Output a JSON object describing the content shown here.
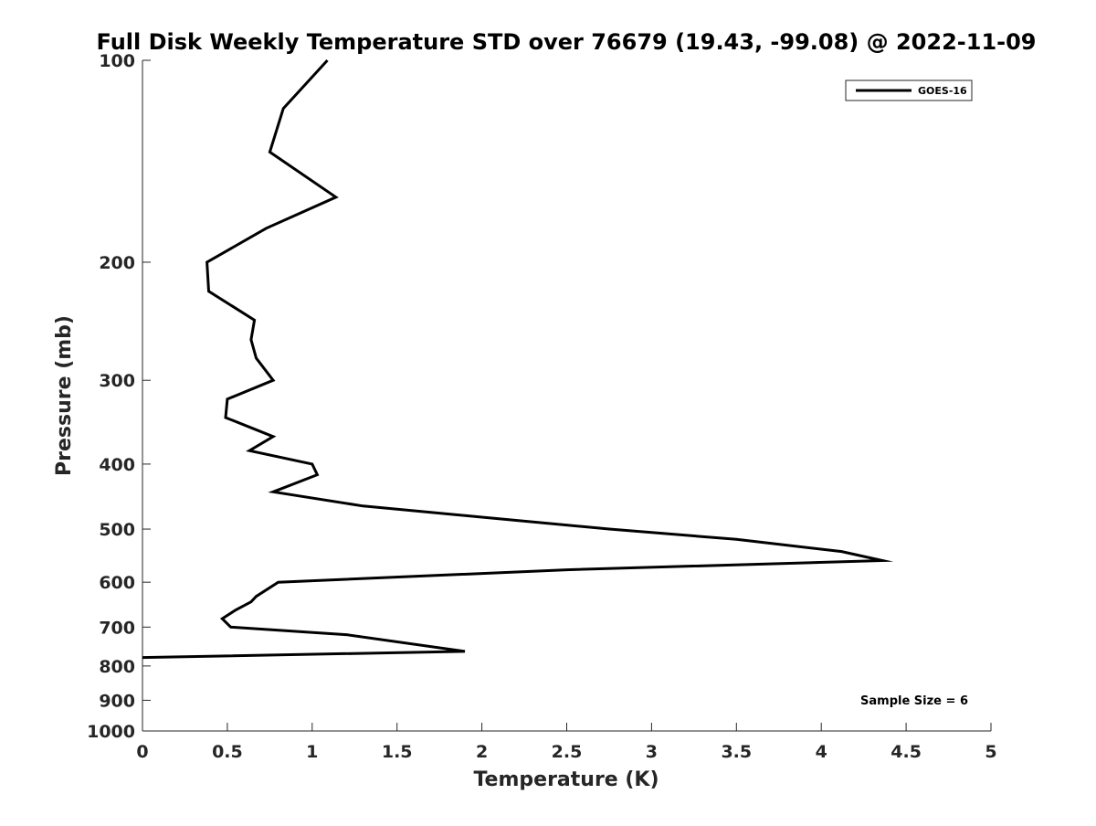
{
  "chart_data": {
    "type": "line",
    "title": "Full Disk Weekly Temperature STD over 76679 (19.43, -99.08) @ 2022-11-09",
    "xlabel": "Temperature (K)",
    "ylabel": "Pressure (mb)",
    "xlim": [
      0,
      5
    ],
    "ylim": [
      100,
      1000
    ],
    "y_scale": "log",
    "y_reversed": true,
    "x_ticks": [
      0,
      0.5,
      1,
      1.5,
      2,
      2.5,
      3,
      3.5,
      4,
      4.5,
      5
    ],
    "x_tick_labels": [
      "0",
      "0.5",
      "1",
      "1.5",
      "2",
      "2.5",
      "3",
      "3.5",
      "4",
      "4.5",
      "5"
    ],
    "y_ticks": [
      100,
      200,
      300,
      400,
      500,
      600,
      700,
      800,
      900,
      1000
    ],
    "y_tick_labels": [
      "100",
      "200",
      "300",
      "400",
      "500",
      "600",
      "700",
      "800",
      "900",
      "1000"
    ],
    "grid": false,
    "legend_position": "top-right",
    "series": [
      {
        "name": "GOES-16",
        "color": "#000000",
        "points": [
          {
            "x": 1.09,
            "y": 100
          },
          {
            "x": 0.83,
            "y": 118
          },
          {
            "x": 0.75,
            "y": 137
          },
          {
            "x": 1.14,
            "y": 160
          },
          {
            "x": 0.73,
            "y": 178
          },
          {
            "x": 0.38,
            "y": 200
          },
          {
            "x": 0.39,
            "y": 221
          },
          {
            "x": 0.66,
            "y": 244
          },
          {
            "x": 0.64,
            "y": 261
          },
          {
            "x": 0.67,
            "y": 278
          },
          {
            "x": 0.77,
            "y": 300
          },
          {
            "x": 0.5,
            "y": 320
          },
          {
            "x": 0.49,
            "y": 341
          },
          {
            "x": 0.77,
            "y": 364
          },
          {
            "x": 0.63,
            "y": 382
          },
          {
            "x": 1.0,
            "y": 400
          },
          {
            "x": 1.03,
            "y": 415
          },
          {
            "x": 0.77,
            "y": 440
          },
          {
            "x": 1.3,
            "y": 462
          },
          {
            "x": 2.0,
            "y": 480
          },
          {
            "x": 2.75,
            "y": 500
          },
          {
            "x": 3.5,
            "y": 518
          },
          {
            "x": 4.12,
            "y": 540
          },
          {
            "x": 4.36,
            "y": 557
          },
          {
            "x": 2.5,
            "y": 575
          },
          {
            "x": 0.8,
            "y": 600
          },
          {
            "x": 0.67,
            "y": 630
          },
          {
            "x": 0.64,
            "y": 642
          },
          {
            "x": 0.55,
            "y": 660
          },
          {
            "x": 0.47,
            "y": 680
          },
          {
            "x": 0.52,
            "y": 700
          },
          {
            "x": 1.21,
            "y": 719
          },
          {
            "x": 1.9,
            "y": 761
          },
          {
            "x": 0.0,
            "y": 777
          }
        ]
      }
    ],
    "annotations": [
      {
        "text": "Sample Size = 6",
        "position": "bottom-right"
      }
    ]
  }
}
